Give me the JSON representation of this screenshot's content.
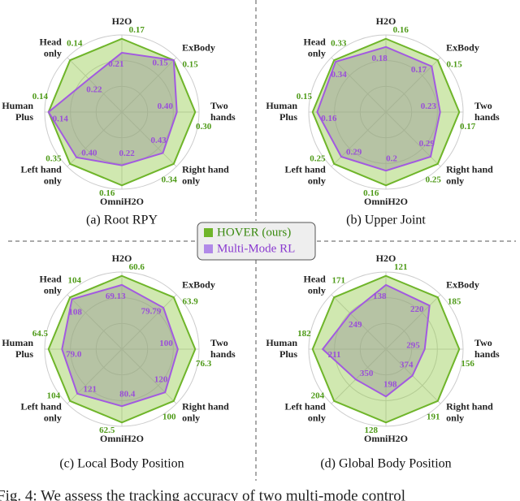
{
  "chart_data": [
    {
      "type": "radar",
      "title": "(a) Root RPY",
      "categories": [
        "H2O",
        "ExBody",
        "Two\nhands",
        "Right hand\nonly",
        "OmniH2O",
        "Left hand\nonly",
        "Human\nPlus",
        "Head\nonly"
      ],
      "series": [
        {
          "name": "HOVER (ours)",
          "color": "#6fb52a",
          "values": [
            0.17,
            0.15,
            0.3,
            0.34,
            0.16,
            0.35,
            0.14,
            0.14
          ],
          "value_labels": [
            "0.17",
            "0.15",
            "0.30",
            "0.34",
            "0.16",
            "0.35",
            "0.14",
            "0.14"
          ]
        },
        {
          "name": "Multi-Mode RL",
          "color": "#a25ae0",
          "values": [
            0.21,
            0.15,
            0.4,
            0.43,
            0.22,
            0.4,
            0.14,
            0.22
          ],
          "value_labels": [
            "0.21",
            "0.15",
            "0.40",
            "0.43",
            "0.22",
            "0.40",
            "0.14",
            "0.22"
          ]
        }
      ]
    },
    {
      "type": "radar",
      "title": "(b) Upper Joint",
      "categories": [
        "H2O",
        "ExBody",
        "Two\nhands",
        "Right hand\nonly",
        "OmniH2O",
        "Left hand\nonly",
        "Human\nPlus",
        "Head\nonly"
      ],
      "series": [
        {
          "name": "HOVER (ours)",
          "color": "#6fb52a",
          "values": [
            0.16,
            0.15,
            0.17,
            0.25,
            0.16,
            0.25,
            0.15,
            0.33
          ],
          "value_labels": [
            "0.16",
            "0.15",
            "0.17",
            "0.25",
            "0.16",
            "0.25",
            "0.15",
            "0.33"
          ]
        },
        {
          "name": "Multi-Mode RL",
          "color": "#a25ae0",
          "values": [
            0.18,
            0.17,
            0.23,
            0.29,
            0.2,
            0.29,
            0.16,
            0.34
          ],
          "value_labels": [
            "0.18",
            "0.17",
            "0.23",
            "0.29",
            "0.2",
            "0.29",
            "0.16",
            "0.34"
          ]
        }
      ]
    },
    {
      "type": "radar",
      "title": "(c) Local Body Position",
      "categories": [
        "H2O",
        "ExBody",
        "Two\nhands",
        "Right hand\nonly",
        "OmniH2O",
        "Left hand\nonly",
        "Human\nPlus",
        "Head\nonly"
      ],
      "series": [
        {
          "name": "HOVER (ours)",
          "color": "#6fb52a",
          "values": [
            60.6,
            63.9,
            76.3,
            100,
            62.5,
            104,
            64.5,
            104
          ],
          "value_labels": [
            "60.6",
            "63.9",
            "76.3",
            "100",
            "62.5",
            "104",
            "64.5",
            "104"
          ]
        },
        {
          "name": "Multi-Mode RL",
          "color": "#a25ae0",
          "values": [
            69.13,
            79.79,
            100,
            120,
            80.4,
            121,
            79,
            108
          ],
          "value_labels": [
            "69.13",
            "79.79",
            "100",
            "120",
            "80.4",
            "121",
            "79.0",
            "108"
          ]
        }
      ]
    },
    {
      "type": "radar",
      "title": "(d) Global Body Position",
      "categories": [
        "H2O",
        "ExBody",
        "Two\nhands",
        "Right hand\nonly",
        "OmniH2O",
        "Left hand\nonly",
        "Human\nPlus",
        "Head\nonly"
      ],
      "series": [
        {
          "name": "HOVER (ours)",
          "color": "#6fb52a",
          "values": [
            121,
            185,
            156,
            191,
            128,
            204,
            182,
            171
          ],
          "value_labels": [
            "121",
            "185",
            "156",
            "191",
            "128",
            "204",
            "182",
            "171"
          ]
        },
        {
          "name": "Multi-Mode RL",
          "color": "#a25ae0",
          "values": [
            138,
            220,
            295,
            374,
            198,
            350,
            211,
            249
          ],
          "value_labels": [
            "138",
            "220",
            "295",
            "374",
            "198",
            "350",
            "211",
            "249"
          ]
        }
      ]
    }
  ],
  "caption": "Fig. 4: We assess the tracking accuracy of two multi-mode control"
}
